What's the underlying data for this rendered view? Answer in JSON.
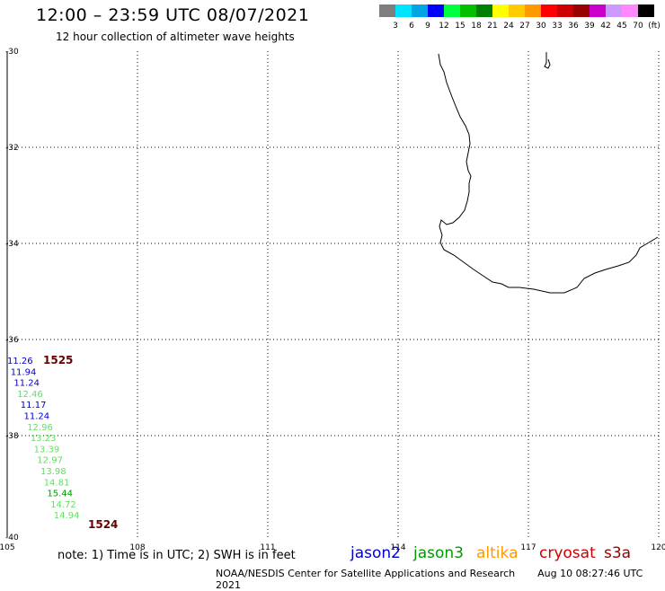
{
  "header": {
    "title": "12:00 – 23:59 UTC 08/07/2021",
    "subtitle": "12 hour collection of altimeter wave heights"
  },
  "colorbar": {
    "colors": [
      "#7f7f7f",
      "#00e5ff",
      "#00a5e5",
      "#0000ff",
      "#00ff40",
      "#00c000",
      "#008000",
      "#ffff00",
      "#ffcc00",
      "#ff9900",
      "#ff0000",
      "#cc0000",
      "#990000",
      "#cc00cc",
      "#cc99ff",
      "#ff88ff",
      "#000000"
    ],
    "labels": [
      "3",
      "6",
      "9",
      "12",
      "15",
      "18",
      "21",
      "24",
      "27",
      "30",
      "33",
      "36",
      "39",
      "42",
      "45",
      "70",
      "(ft)"
    ]
  },
  "axes": {
    "lat_labels": [
      "-30",
      "-32",
      "-34",
      "-36",
      "-38",
      "-40"
    ],
    "lon_labels": [
      "105",
      "108",
      "111",
      "114",
      "117",
      "120"
    ]
  },
  "tracks": [
    {
      "id": "1525",
      "color": "#660000",
      "values": [
        {
          "v": "11.26",
          "c": "#0000cc"
        },
        {
          "v": "11.94",
          "c": "#0000cc"
        },
        {
          "v": "11.24",
          "c": "#0000cc"
        },
        {
          "v": "12.46",
          "c": "#66dd66"
        },
        {
          "v": "11.17",
          "c": "#0000cc"
        },
        {
          "v": "11.24",
          "c": "#0000cc"
        },
        {
          "v": "12.96",
          "c": "#66dd66"
        },
        {
          "v": "13.23",
          "c": "#66dd66"
        },
        {
          "v": "13.39",
          "c": "#66dd66"
        },
        {
          "v": "12.97",
          "c": "#66dd66"
        },
        {
          "v": "13.98",
          "c": "#66dd66"
        },
        {
          "v": "14.81",
          "c": "#66dd66"
        },
        {
          "v": "15.44",
          "c": "#009900"
        },
        {
          "v": "14.72",
          "c": "#66dd66"
        },
        {
          "v": "14.94",
          "c": "#66dd66"
        }
      ]
    },
    {
      "id": "1524",
      "color": "#660000"
    }
  ],
  "footer": {
    "note": "note:  1) Time is in UTC;  2) SWH is in feet",
    "credit": "NOAA/NESDIS Center for Satellite Applications and Research",
    "timestamp": "Aug 10 08:27:46 UTC 2021"
  },
  "satellites": [
    {
      "name": "jason2",
      "color": "#0000cc"
    },
    {
      "name": "jason3",
      "color": "#009900"
    },
    {
      "name": "altika",
      "color": "#ff9900"
    },
    {
      "name": "cryosat",
      "color": "#cc0000"
    },
    {
      "name": "s3a",
      "color": "#990000"
    }
  ]
}
